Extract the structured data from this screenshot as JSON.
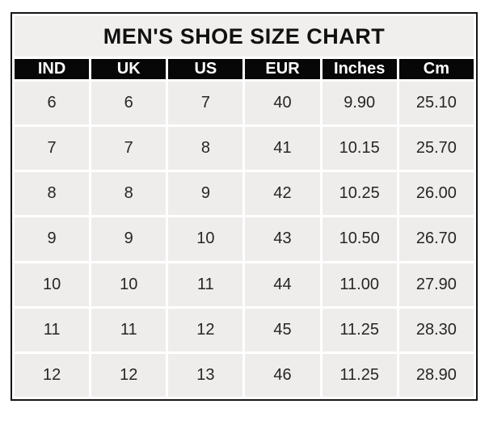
{
  "title": "MEN'S SHOE SIZE CHART",
  "chart_data": {
    "type": "table",
    "title": "MEN'S SHOE SIZE CHART",
    "columns": [
      "IND",
      "UK",
      "US",
      "EUR",
      "Inches",
      "Cm"
    ],
    "rows": [
      [
        "6",
        "6",
        "7",
        "40",
        "9.90",
        "25.10"
      ],
      [
        "7",
        "7",
        "8",
        "41",
        "10.15",
        "25.70"
      ],
      [
        "8",
        "8",
        "9",
        "42",
        "10.25",
        "26.00"
      ],
      [
        "9",
        "9",
        "10",
        "43",
        "10.50",
        "26.70"
      ],
      [
        "10",
        "10",
        "11",
        "44",
        "11.00",
        "27.90"
      ],
      [
        "11",
        "11",
        "12",
        "45",
        "11.25",
        "28.30"
      ],
      [
        "12",
        "12",
        "13",
        "46",
        "11.25",
        "28.90"
      ]
    ]
  },
  "colors": {
    "page_bg": "#ffffff",
    "title_bg": "#f0efed",
    "header_bg": "#070707",
    "header_text": "#ffffff",
    "cell_bg": "#efedec",
    "gap": "#ffffff",
    "outer_border": "#151515",
    "body_text": "#262626"
  }
}
